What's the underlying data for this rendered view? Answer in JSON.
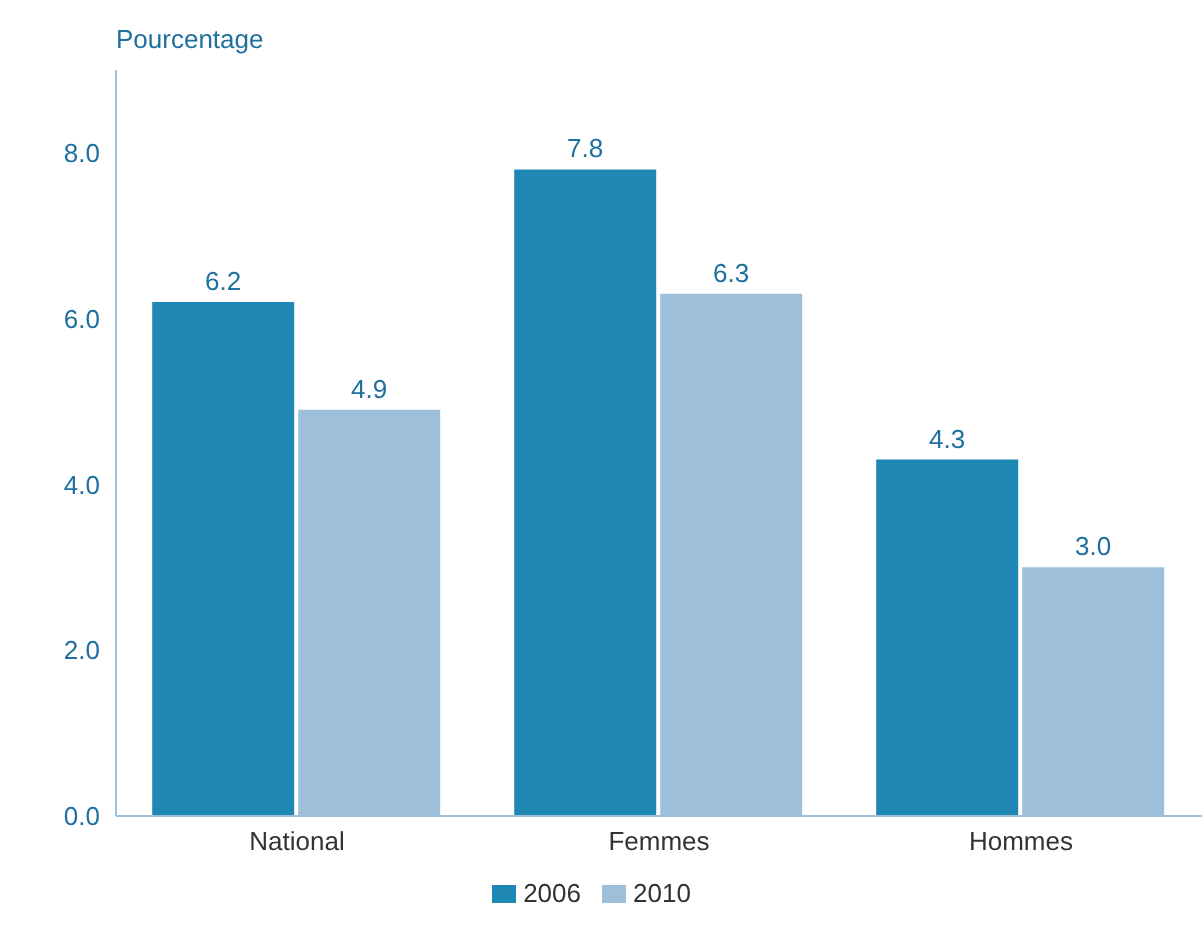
{
  "chart_data": {
    "type": "bar",
    "ylabel": "Pourcentage",
    "categories": [
      "National",
      "Femmes",
      "Hommes"
    ],
    "series": [
      {
        "name": "2006",
        "color": "#1f87b3",
        "values": [
          6.2,
          7.8,
          4.3
        ],
        "value_labels": [
          "6.2",
          "7.8",
          "4.3"
        ]
      },
      {
        "name": "2010",
        "color": "#9dbfd9",
        "values": [
          4.9,
          6.3,
          3.0
        ],
        "value_labels": [
          "4.9",
          "6.3",
          "3.0"
        ]
      }
    ],
    "ylim": [
      0,
      9
    ],
    "yticks": [
      {
        "value": 0,
        "label": "0.0"
      },
      {
        "value": 2,
        "label": "2.0"
      },
      {
        "value": 4,
        "label": "4.0"
      },
      {
        "value": 6,
        "label": "6.0"
      },
      {
        "value": 8,
        "label": "8.0"
      }
    ],
    "grid": false,
    "legend": "bottom"
  }
}
